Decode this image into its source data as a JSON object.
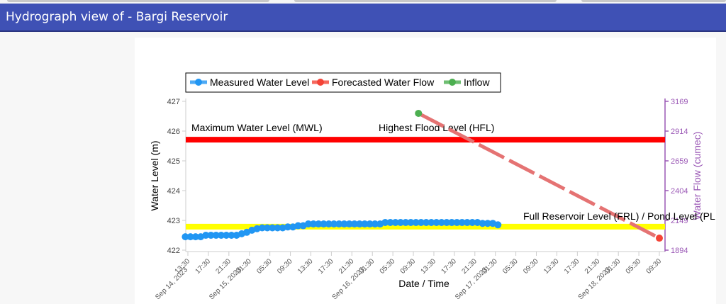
{
  "header": {
    "title": "Hydrograph view of - Bargi Reservoir"
  },
  "chart_data": {
    "type": "line",
    "legend": {
      "placement": "top-left",
      "entries": [
        {
          "label": "Measured Water Level",
          "color": "#2196f3"
        },
        {
          "label": "Forecasted Water Flow",
          "color": "#f44336"
        },
        {
          "label": "Inflow",
          "color": "#4caf50"
        }
      ]
    },
    "xlabel": "Date / Time",
    "ylabel": "Water Level (m)",
    "y2label": "Water Flow (cumec)",
    "ylim": [
      422,
      427
    ],
    "y2lim": [
      1894,
      3169
    ],
    "yticks": [
      "422",
      "423",
      "424",
      "425",
      "426",
      "427"
    ],
    "y2ticks": [
      "1894",
      "2149",
      "2404",
      "2659",
      "2914",
      "3169"
    ],
    "x_start": "Sep 14, 2023 13:30",
    "x_range_hours": [
      0,
      92
    ],
    "xticks": [
      "13:30",
      "17:30",
      "21:30",
      "01:30",
      "05:30",
      "09:30",
      "13:30",
      "17:30",
      "21:30",
      "01:30",
      "05:30",
      "09:30",
      "13:30",
      "17:30",
      "21:30",
      "01:30",
      "05:30",
      "09:30",
      "13:30",
      "17:30",
      "21:30",
      "01:30",
      "05:30",
      "09:30"
    ],
    "date_labels": [
      {
        "label": "Sep 14, 2023",
        "hour": 0
      },
      {
        "label": "Sep 15, 2023",
        "hour": 10.5
      },
      {
        "label": "Sep 16, 2023",
        "hour": 34.5
      },
      {
        "label": "Sep 17, 2023",
        "hour": 58.5
      },
      {
        "label": "Sep 18, 2023",
        "hour": 82.5
      }
    ],
    "reference_lines": [
      {
        "label": "Maximum Water Level (MWL)",
        "value": 425.71,
        "color": "#ff0000"
      },
      {
        "label": "Full Reservoir Level (FRL) / Pond Level (PL",
        "value": 422.79,
        "color": "#ffff00"
      }
    ],
    "annotations": [
      {
        "label": "Highest Flood Level (HFL)"
      }
    ],
    "series": [
      {
        "name": "Measured Water Level",
        "axis": "left",
        "start_hour": -0.5,
        "step_hours": 1,
        "values": [
          422.45,
          422.45,
          422.45,
          422.45,
          422.5,
          422.5,
          422.5,
          422.5,
          422.5,
          422.5,
          422.5,
          422.55,
          422.6,
          422.67,
          422.72,
          422.75,
          422.75,
          422.75,
          422.75,
          422.75,
          422.78,
          422.78,
          422.82,
          422.82,
          422.88,
          422.88,
          422.88,
          422.88,
          422.88,
          422.88,
          422.88,
          422.88,
          422.88,
          422.88,
          422.88,
          422.88,
          422.88,
          422.88,
          422.88,
          422.93,
          422.93,
          422.93,
          422.93,
          422.93,
          422.93,
          422.93,
          422.93,
          422.93,
          422.93,
          422.93,
          422.93,
          422.93,
          422.93,
          422.93,
          422.93,
          422.93,
          422.93,
          422.93,
          422.9,
          422.9,
          422.9,
          422.85
        ]
      },
      {
        "name": "Forecasted Water Flow",
        "axis": "right",
        "points": [
          {
            "hour": 45,
            "value": 3066
          },
          {
            "hour": 92,
            "value": 1997
          }
        ]
      },
      {
        "name": "Inflow",
        "axis": "right",
        "points": [
          {
            "hour": 45,
            "value": 3066
          }
        ]
      }
    ]
  }
}
